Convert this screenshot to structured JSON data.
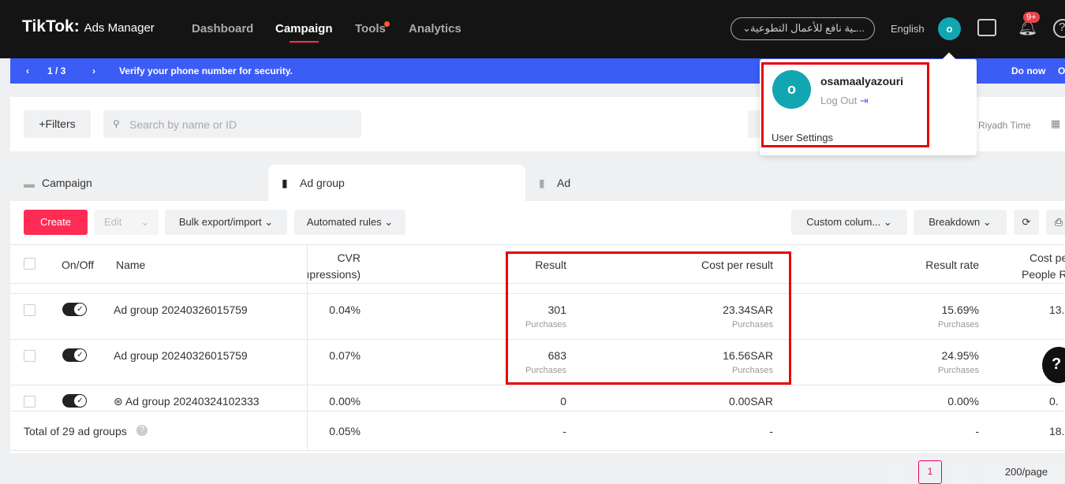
{
  "header": {
    "logo": "TikTok",
    "logo_suffix": "Ads Manager",
    "nav": [
      "Dashboard",
      "Campaign",
      "Tools",
      "Analytics"
    ],
    "account": "...ـية نافع للأعمال التطوعية",
    "language": "English",
    "avatar_letter": "o",
    "notif_badge": "9+"
  },
  "banner": {
    "pager": "1 / 3",
    "message": "Verify your phone number for security.",
    "action": "Do now",
    "action2": "O"
  },
  "user_menu": {
    "username": "osamaalyazouri",
    "logout": "Log Out",
    "settings": "User Settings",
    "avatar_letter": "o"
  },
  "filters": {
    "filters_label": "+Filters",
    "search_placeholder": "Search by name or ID",
    "timezone": "Riyadh Time"
  },
  "tabs": [
    "Campaign",
    "Ad group",
    "Ad"
  ],
  "toolbar": {
    "create": "Create",
    "edit": "Edit",
    "bulk": "Bulk export/import",
    "rules": "Automated rules",
    "columns": "Custom colum...",
    "breakdown": "Breakdown"
  },
  "table": {
    "headers": {
      "onoff": "On/Off",
      "name": "Name",
      "cvr1": "CVR",
      "cvr2": "ıpressions)",
      "result": "Result",
      "cpr": "Cost per result",
      "rate": "Result rate",
      "cpp1": "Cost pe",
      "cpp2": "People R"
    },
    "rows": [
      {
        "name": "Ad group 20240326015759",
        "cvr": "0.04%",
        "result": "301",
        "result_sub": "Purchases",
        "cpr": "23.34SAR",
        "cpr_sub": "Purchases",
        "rate": "15.69%",
        "rate_sub": "Purchases",
        "cpp": "13."
      },
      {
        "name": "Ad group 20240326015759",
        "cvr": "0.07%",
        "result": "683",
        "result_sub": "Purchases",
        "cpr": "16.56SAR",
        "cpr_sub": "Purchases",
        "rate": "24.95%",
        "rate_sub": "Purchases",
        "cpp": ""
      },
      {
        "name": "Ad group 20240324102333",
        "cvr": "0.00%",
        "result": "0",
        "result_sub": "",
        "cpr": "0.00SAR",
        "cpr_sub": "",
        "rate": "0.00%",
        "rate_sub": "",
        "cpp": "0."
      }
    ],
    "total": {
      "label": "Total of 29 ad groups",
      "cvr": "0.05%",
      "result": "-",
      "cpr": "-",
      "rate": "-",
      "cpp": "18."
    }
  },
  "pagination": {
    "page": "1",
    "page_size": "200/page"
  }
}
